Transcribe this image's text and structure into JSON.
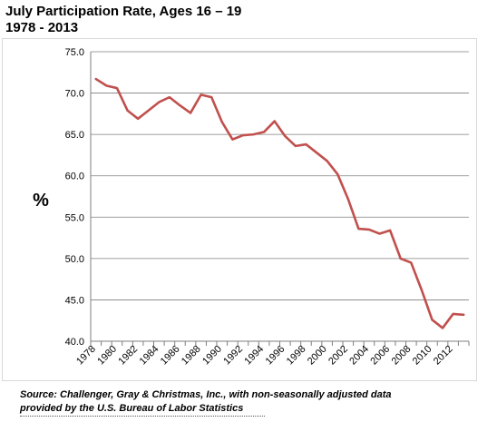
{
  "title_line1": "July Participation Rate, Ages 16 – 19",
  "title_line2": "1978 - 2013",
  "source_line1": "Source: Challenger, Gray & Christmas, Inc., with non-seasonally adjusted data",
  "source_line2": "provided by the U.S. Bureau of Labor Statistics",
  "colors": {
    "line": "#c0504d",
    "grid": "#7f7f7f",
    "axis": "#7f7f7f"
  },
  "chart_data": {
    "type": "line",
    "title": "July Participation Rate, Ages 16 – 19",
    "subtitle": "1978 - 2013",
    "xlabel": "",
    "ylabel": "%",
    "ylim": [
      40,
      75
    ],
    "yticks": [
      "40.0",
      "45.0",
      "50.0",
      "55.0",
      "60.0",
      "65.0",
      "70.0",
      "75.0"
    ],
    "xticks": [
      "1978",
      "1980",
      "1982",
      "1984",
      "1986",
      "1988",
      "1990",
      "1992",
      "1994",
      "1996",
      "1998",
      "2000",
      "2002",
      "2004",
      "2006",
      "2008",
      "2010",
      "2012"
    ],
    "grid": true,
    "legend": "none",
    "x": [
      1978,
      1979,
      1980,
      1981,
      1982,
      1983,
      1984,
      1985,
      1986,
      1987,
      1988,
      1989,
      1990,
      1991,
      1992,
      1993,
      1994,
      1995,
      1996,
      1997,
      1998,
      1999,
      2000,
      2001,
      2002,
      2003,
      2004,
      2005,
      2006,
      2007,
      2008,
      2009,
      2010,
      2011,
      2012,
      2013
    ],
    "series": [
      {
        "values": [
          71.7,
          70.9,
          70.6,
          67.9,
          66.9,
          67.9,
          68.9,
          69.5,
          68.5,
          67.6,
          69.8,
          69.5,
          66.5,
          64.4,
          64.9,
          65.0,
          65.3,
          66.6,
          64.8,
          63.6,
          63.8,
          62.8,
          61.8,
          60.2,
          57.2,
          53.6,
          53.5,
          53.0,
          53.4,
          50.0,
          49.5,
          46.2,
          42.6,
          41.6,
          43.3,
          43.2
        ]
      }
    ]
  }
}
